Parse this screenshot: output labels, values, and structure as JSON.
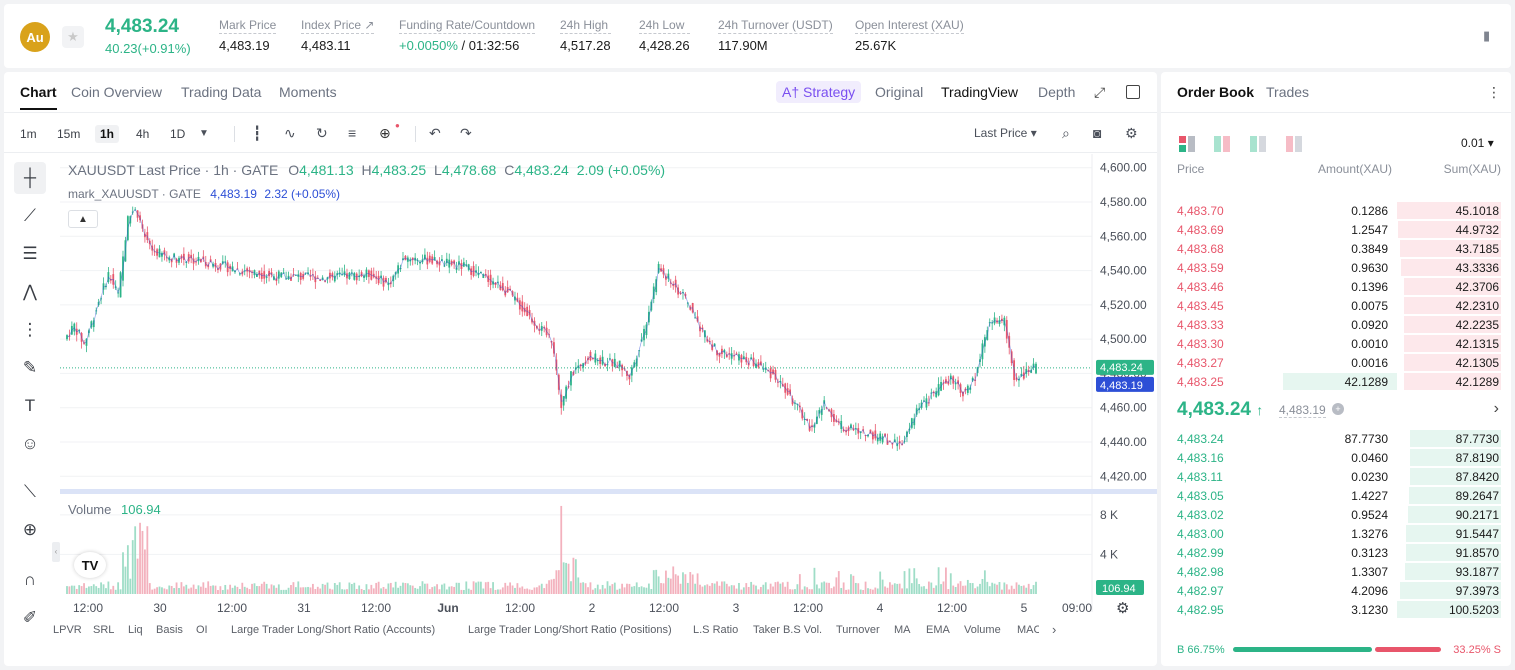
{
  "header": {
    "coin_symbol": "Au",
    "last_price": "4,483.24",
    "change": "40.23(+0.91%)",
    "stats": [
      {
        "label": "Mark Price",
        "value": "4,483.19"
      },
      {
        "label": "Index Price ↗",
        "value": "4,483.11"
      },
      {
        "label": "Funding Rate/Countdown",
        "value_rate": "+0.0050%",
        "value_countdown": "/ 01:32:56"
      },
      {
        "label": "24h High",
        "value": "4,517.28"
      },
      {
        "label": "24h Low",
        "value": "4,428.26"
      },
      {
        "label": "24h Turnover (USDT)",
        "value": "117.90M"
      },
      {
        "label": "Open Interest (XAU)",
        "value": "25.67K"
      }
    ]
  },
  "chart_tabs": {
    "tabs": [
      "Chart",
      "Coin Overview",
      "Trading Data",
      "Moments"
    ],
    "active": "Chart",
    "strategy": "A† Strategy",
    "views": [
      "Original",
      "TradingView",
      "Depth"
    ],
    "active_view": "TradingView"
  },
  "toolbar": {
    "intervals": [
      "1m",
      "15m",
      "1h",
      "4h",
      "1D"
    ],
    "active_interval": "1h",
    "price_type": "Last Price"
  },
  "legend": {
    "symbol": "XAUUSDT Last Price · 1h · GATE",
    "o_label": "O",
    "o": "4,481.13",
    "h_label": "H",
    "h": "4,483.25",
    "l_label": "L",
    "l": "4,478.68",
    "c_label": "C",
    "c": "4,483.24",
    "chg": "2.09 (+0.05%)",
    "mark_label": "mark_XAUUSDT · GATE",
    "mark_value": "4,483.19",
    "mark_chg": "2.32 (+0.05%)",
    "volume_label": "Volume",
    "volume_value": "106.94"
  },
  "price_axis": [
    "4,600.00",
    "4,580.00",
    "4,560.00",
    "4,540.00",
    "4,520.00",
    "4,500.00",
    "4,480.00",
    "4,460.00",
    "4,440.00",
    "4,420.00"
  ],
  "price_tags": {
    "last": "4,483.24",
    "mark": "4,483.19",
    "volume": "106.94"
  },
  "volume_axis": [
    "8 K",
    "4 K"
  ],
  "time_axis": [
    "12:00",
    "30",
    "12:00",
    "31",
    "12:00",
    "Jun",
    "12:00",
    "2",
    "12:00",
    "3",
    "12:00",
    "4",
    "12:00",
    "5",
    "09:00"
  ],
  "indicators": [
    "LPVR",
    "SRL",
    "Liq",
    "Basis",
    "OI",
    "Large Trader Long/Short Ratio (Accounts)",
    "Large Trader Long/Short Ratio (Positions)",
    "L.S Ratio",
    "Taker B.S Vol.",
    "Turnover",
    "MA",
    "EMA",
    "Volume",
    "MACD"
  ],
  "orderbook": {
    "tabs": [
      "Order Book",
      "Trades"
    ],
    "active": "Order Book",
    "precision": "0.01",
    "columns": [
      "Price",
      "Amount(XAU)",
      "Sum(XAU)"
    ],
    "asks": [
      {
        "price": "4,483.70",
        "amount": "0.1286",
        "sum": "45.1018",
        "depth": 1.0
      },
      {
        "price": "4,483.69",
        "amount": "1.2547",
        "sum": "44.9732",
        "depth": 1.0
      },
      {
        "price": "4,483.68",
        "amount": "0.3849",
        "sum": "43.7185",
        "depth": 1.0
      },
      {
        "price": "4,483.59",
        "amount": "0.9630",
        "sum": "43.3336",
        "depth": 1.0
      },
      {
        "price": "4,483.46",
        "amount": "0.1396",
        "sum": "42.3706",
        "depth": 1.0
      },
      {
        "price": "4,483.45",
        "amount": "0.0075",
        "sum": "42.2310",
        "depth": 1.0
      },
      {
        "price": "4,483.33",
        "amount": "0.0920",
        "sum": "42.2235",
        "depth": 1.0
      },
      {
        "price": "4,483.30",
        "amount": "0.0010",
        "sum": "42.1315",
        "depth": 1.0
      },
      {
        "price": "4,483.27",
        "amount": "0.0016",
        "sum": "42.1305",
        "depth": 1.0
      },
      {
        "price": "4,483.25",
        "amount": "42.1289",
        "sum": "42.1289",
        "depth": 1.0
      }
    ],
    "mid_price": "4,483.24",
    "mid_mark": "4,483.19",
    "bids": [
      {
        "price": "4,483.24",
        "amount": "87.7730",
        "sum": "87.7730"
      },
      {
        "price": "4,483.16",
        "amount": "0.0460",
        "sum": "87.8190"
      },
      {
        "price": "4,483.11",
        "amount": "0.0230",
        "sum": "87.8420"
      },
      {
        "price": "4,483.05",
        "amount": "1.4227",
        "sum": "89.2647"
      },
      {
        "price": "4,483.02",
        "amount": "0.9524",
        "sum": "90.2171"
      },
      {
        "price": "4,483.00",
        "amount": "1.3276",
        "sum": "91.5447"
      },
      {
        "price": "4,482.99",
        "amount": "0.3123",
        "sum": "91.8570"
      },
      {
        "price": "4,482.98",
        "amount": "1.3307",
        "sum": "93.1877"
      },
      {
        "price": "4,482.97",
        "amount": "4.2096",
        "sum": "97.3973"
      },
      {
        "price": "4,482.95",
        "amount": "3.1230",
        "sum": "100.5203"
      }
    ],
    "buy_ratio": "B 66.75%",
    "sell_ratio": "33.25% S",
    "buy_fraction": 0.6675
  },
  "colors": {
    "up": "#2cb487",
    "down": "#e8566b",
    "accent": "#7a4ff0",
    "mark": "#2d4fd6"
  }
}
